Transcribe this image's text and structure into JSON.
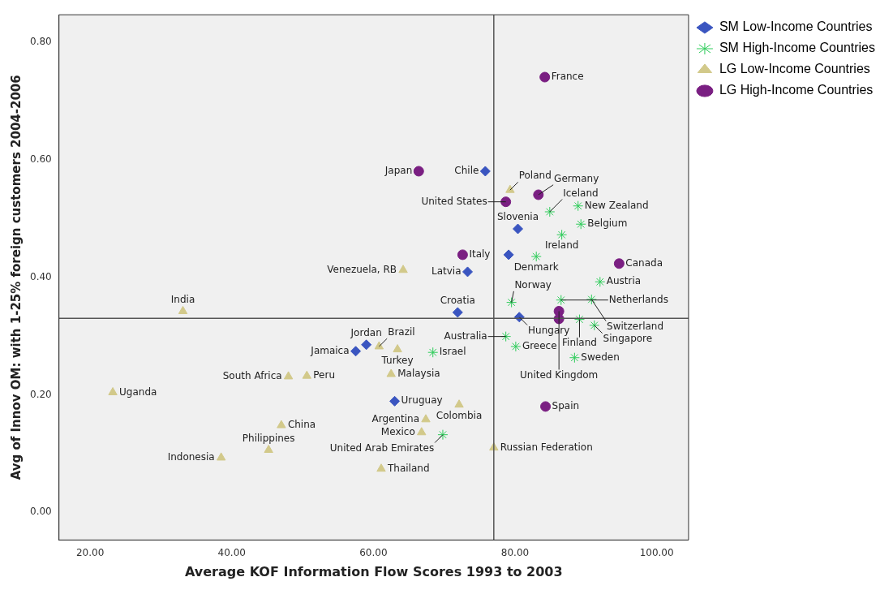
{
  "chart_data": {
    "type": "scatter",
    "xlabel": "Average KOF Information Flow Scores 1993 to 2003",
    "ylabel": "Avg of Innov OM: with 1-25% foreign customers 2004-2006",
    "xlim": [
      15.6,
      104.5
    ],
    "ylim": [
      -0.047,
      0.846
    ],
    "xticks": [
      {
        "value": 20,
        "label": "20.00"
      },
      {
        "value": 40,
        "label": "40.00"
      },
      {
        "value": 60,
        "label": "60.00"
      },
      {
        "value": 80,
        "label": "80.00"
      },
      {
        "value": 100,
        "label": "100.00"
      }
    ],
    "yticks": [
      {
        "value": 0,
        "label": "0.00"
      },
      {
        "value": 0.2,
        "label": "0.20"
      },
      {
        "value": 0.4,
        "label": "0.40"
      },
      {
        "value": 0.6,
        "label": "0.60"
      },
      {
        "value": 0.8,
        "label": "0.80"
      }
    ],
    "grid": false,
    "legend": "top right",
    "ref_lines": [
      {
        "axis": "x",
        "value": 77,
        "color": "#555555"
      },
      {
        "axis": "y",
        "value": 0.33,
        "color": "#555555"
      }
    ],
    "series": [
      {
        "name": "SM Low-Income Countries",
        "color": "#3a55c0",
        "marker": "diamond",
        "x": [
          75.8,
          80.4,
          79.1,
          73.3,
          71.9,
          80.6,
          59.0,
          57.5,
          63.0
        ],
        "values": [
          0.58,
          0.482,
          0.438,
          0.409,
          0.34,
          0.332,
          0.285,
          0.274,
          0.189
        ],
        "value_labels": [
          "Chile",
          "Slovenia",
          null,
          "Latvia",
          "Croatia",
          "Hungary",
          "Jordan",
          "Jamaica",
          "Uruguay"
        ]
      },
      {
        "name": "SM High-Income Countries",
        "color": "#2ecc5a",
        "marker": "cross",
        "x": [
          84.9,
          88.9,
          89.3,
          86.6,
          83.0,
          92.0,
          79.5,
          86.5,
          90.8,
          89.1,
          91.2,
          78.7,
          80.1,
          88.4,
          68.4,
          69.8
        ],
        "values": [
          0.511,
          0.521,
          0.49,
          0.472,
          0.435,
          0.392,
          0.357,
          0.361,
          0.362,
          0.328,
          0.318,
          0.299,
          0.282,
          0.263,
          0.272,
          0.132
        ],
        "value_labels": [
          "Iceland",
          "New Zealand",
          "Belgium",
          "Ireland",
          "Denmark",
          "Austria",
          "Norway",
          "Netherlands",
          "Switzerland",
          "Finland",
          "Singapore",
          "Australia",
          "Greece",
          "Sweden",
          "Israel",
          "United Arab Emirates"
        ]
      },
      {
        "name": "LG Low-Income Countries",
        "color": "#d2c98a",
        "marker": "triangle",
        "x": [
          79.3,
          64.2,
          33.1,
          60.8,
          63.4,
          48.0,
          50.6,
          62.5,
          23.2,
          72.1,
          67.4,
          66.8,
          47.0,
          45.2,
          77.0,
          38.5,
          61.1
        ],
        "values": [
          0.548,
          0.412,
          0.342,
          0.282,
          0.277,
          0.231,
          0.232,
          0.235,
          0.204,
          0.183,
          0.158,
          0.136,
          0.148,
          0.106,
          0.11,
          0.093,
          0.074
        ],
        "value_labels": [
          "Poland",
          "Venezuela, RB",
          "India",
          "Brazil",
          "Turkey",
          "South Africa",
          "Peru",
          "Malaysia",
          "Uganda",
          "Colombia",
          "Argentina",
          "Mexico",
          "China",
          "Philippines",
          "Russian Federation",
          "Indonesia",
          "Thailand"
        ]
      },
      {
        "name": "LG High-Income Countries",
        "color": "#7a1f82",
        "marker": "circle",
        "x": [
          84.2,
          66.4,
          83.3,
          78.7,
          72.6,
          94.7,
          86.2,
          86.2,
          84.3
        ],
        "values": [
          0.74,
          0.58,
          0.54,
          0.528,
          0.438,
          0.423,
          0.342,
          0.329,
          0.18
        ],
        "value_labels": [
          "France",
          "Japan",
          "Germany",
          "United States",
          "Italy",
          "Canada",
          "United Kingdom",
          null,
          "Spain"
        ]
      }
    ]
  }
}
